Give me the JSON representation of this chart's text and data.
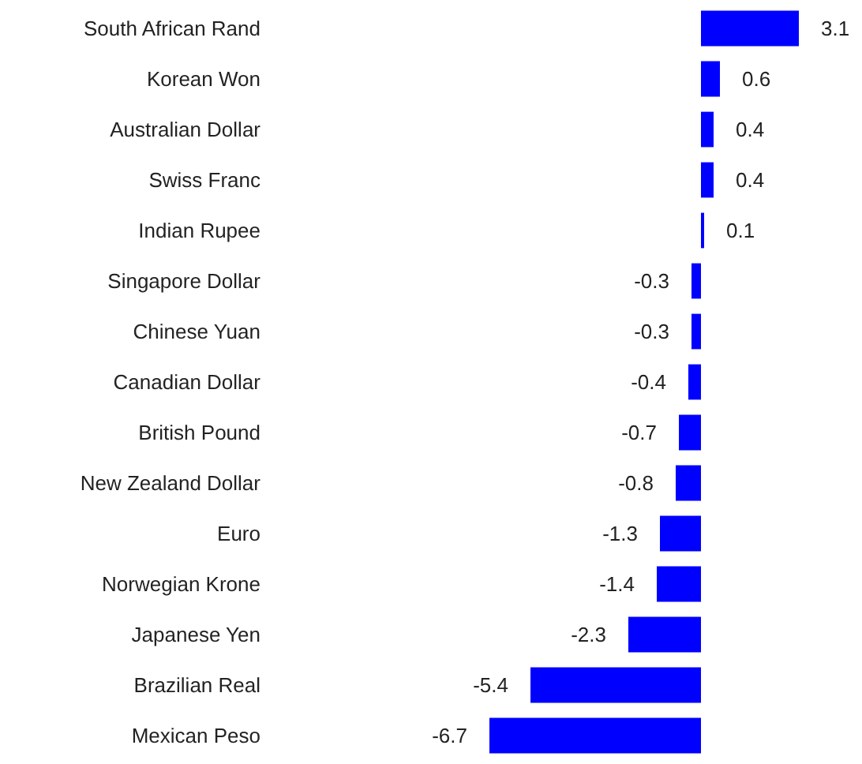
{
  "chart_data": {
    "type": "bar",
    "orientation": "horizontal",
    "categories": [
      "South African Rand",
      "Korean Won",
      "Australian Dollar",
      "Swiss Franc",
      "Indian Rupee",
      "Singapore Dollar",
      "Chinese Yuan",
      "Canadian Dollar",
      "British Pound",
      "New Zealand Dollar",
      "Euro",
      "Norwegian Krone",
      "Japanese Yen",
      "Brazilian Real",
      "Mexican Peso"
    ],
    "values": [
      3.1,
      0.6,
      0.4,
      0.4,
      0.1,
      -0.3,
      -0.3,
      -0.4,
      -0.7,
      -0.8,
      -1.3,
      -1.4,
      -2.3,
      -5.4,
      -6.7
    ],
    "color": "#0000ff",
    "data_labels": true
  }
}
